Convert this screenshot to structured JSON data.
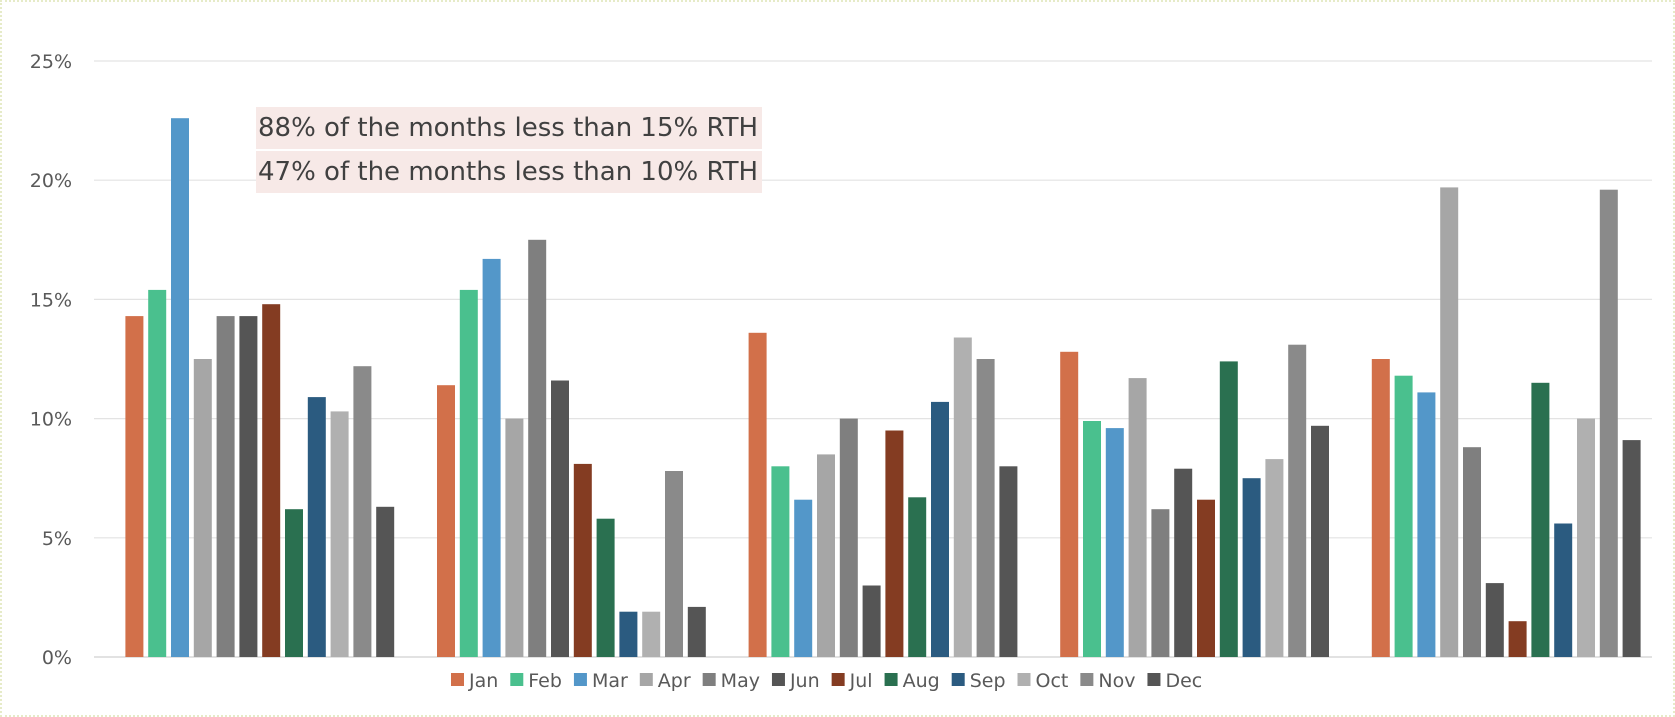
{
  "chart_data": {
    "type": "bar",
    "categories": [
      "",
      "",
      "",
      "",
      ""
    ],
    "ylim": [
      0,
      25
    ],
    "yticks": [
      "0%",
      "5%",
      "10%",
      "15%",
      "20%",
      "25%"
    ],
    "grid": true,
    "legend_position": "bottom",
    "annotations": [
      "88% of the months less than 15% RTH",
      "47% of the months less than 10% RTH"
    ],
    "series": [
      {
        "name": "Jan",
        "color": "#d2704a",
        "values": [
          14.3,
          11.4,
          13.6,
          12.8,
          12.5
        ]
      },
      {
        "name": "Feb",
        "color": "#4ac08e",
        "values": [
          15.4,
          15.4,
          8.0,
          9.9,
          11.8
        ]
      },
      {
        "name": "Mar",
        "color": "#5397c9",
        "values": [
          22.6,
          16.7,
          6.6,
          9.6,
          11.1
        ]
      },
      {
        "name": "Apr",
        "color": "#a6a6a6",
        "values": [
          12.5,
          10.0,
          8.5,
          11.7,
          19.7
        ]
      },
      {
        "name": "May",
        "color": "#7f7f7f",
        "values": [
          14.3,
          17.5,
          10.0,
          6.2,
          8.8
        ]
      },
      {
        "name": "Jun",
        "color": "#555555",
        "values": [
          14.3,
          11.6,
          3.0,
          7.9,
          3.1
        ]
      },
      {
        "name": "Jul",
        "color": "#843c22",
        "values": [
          14.8,
          8.1,
          9.5,
          6.6,
          1.5
        ]
      },
      {
        "name": "Aug",
        "color": "#2a7050",
        "values": [
          6.2,
          5.8,
          6.7,
          12.4,
          11.5
        ]
      },
      {
        "name": "Sep",
        "color": "#2b5b80",
        "values": [
          10.9,
          1.9,
          10.7,
          7.5,
          5.6
        ]
      },
      {
        "name": "Oct",
        "color": "#b0b0b0",
        "values": [
          10.3,
          1.9,
          13.4,
          8.3,
          10.0
        ]
      },
      {
        "name": "Nov",
        "color": "#8a8a8a",
        "values": [
          12.2,
          7.8,
          12.5,
          13.1,
          19.6
        ]
      },
      {
        "name": "Dec",
        "color": "#555555",
        "values": [
          6.3,
          2.1,
          8.0,
          9.7,
          9.1
        ]
      }
    ]
  }
}
